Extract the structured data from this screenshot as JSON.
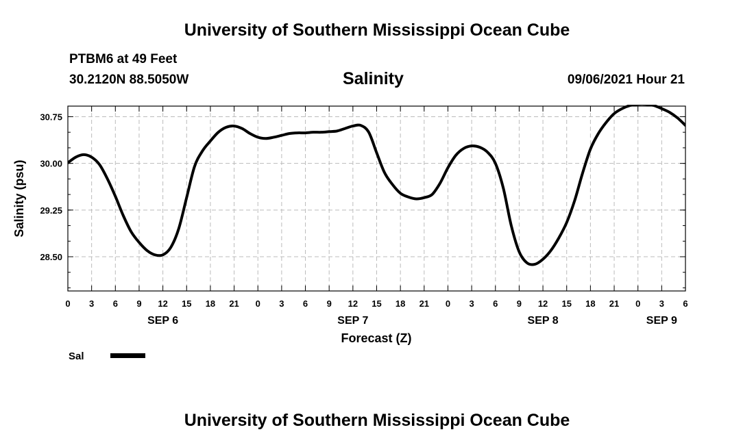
{
  "header": {
    "title": "University of Southern Mississippi Ocean Cube",
    "station": "PTBM6 at 49 Feet",
    "coordinates": "30.2120N  88.5050W",
    "chart_title": "Salinity",
    "datetime": "09/06/2021 Hour 21"
  },
  "footer": {
    "title": "University of Southern Mississippi Ocean Cube"
  },
  "colors": {
    "line": "#000000",
    "grid": "#bbbbbb",
    "axis": "#000000"
  },
  "chart_data": {
    "type": "line",
    "title": "Salinity",
    "xlabel": "Forecast (Z)",
    "ylabel": "Salinity (psu)",
    "x_unit": "hours from SEP 6 00Z",
    "xlim": [
      0,
      78
    ],
    "ylim": [
      27.95,
      30.92
    ],
    "y_ticks": [
      28.5,
      29.25,
      30.0,
      30.75
    ],
    "y_tick_labels": [
      "28.50",
      "29.25",
      "30.00",
      "30.75"
    ],
    "x_ticks": [
      0,
      3,
      6,
      9,
      12,
      15,
      18,
      21,
      24,
      27,
      30,
      33,
      36,
      39,
      42,
      45,
      48,
      51,
      54,
      57,
      60,
      63,
      66,
      69,
      72,
      75,
      78
    ],
    "x_tick_labels": [
      "0",
      "3",
      "6",
      "9",
      "12",
      "15",
      "18",
      "21",
      "0",
      "3",
      "6",
      "9",
      "12",
      "15",
      "18",
      "21",
      "0",
      "3",
      "6",
      "9",
      "12",
      "15",
      "18",
      "21",
      "0",
      "3",
      "6"
    ],
    "day_labels": [
      {
        "hour": 12,
        "label": "SEP 6"
      },
      {
        "hour": 36,
        "label": "SEP 7"
      },
      {
        "hour": 60,
        "label": "SEP 8"
      },
      {
        "hour": 75,
        "label": "SEP 9"
      }
    ],
    "grid": true,
    "legend_position": "bottom-left",
    "series": [
      {
        "name": "Sal",
        "x": [
          0,
          1,
          2,
          3,
          4,
          5,
          6,
          7,
          8,
          9,
          10,
          11,
          12,
          13,
          14,
          15,
          16,
          17,
          18,
          19,
          20,
          21,
          22,
          23,
          24,
          25,
          26,
          27,
          28,
          29,
          30,
          31,
          32,
          33,
          34,
          35,
          36,
          37,
          38,
          39,
          40,
          41,
          42,
          43,
          44,
          45,
          46,
          47,
          48,
          49,
          50,
          51,
          52,
          53,
          54,
          55,
          56,
          57,
          58,
          59,
          60,
          61,
          62,
          63,
          64,
          65,
          66,
          67,
          68,
          69,
          70,
          71,
          72,
          73,
          74,
          75,
          76,
          77,
          78
        ],
        "values": [
          30.01,
          30.1,
          30.14,
          30.1,
          29.98,
          29.75,
          29.47,
          29.16,
          28.9,
          28.73,
          28.6,
          28.53,
          28.53,
          28.65,
          28.95,
          29.45,
          29.95,
          30.2,
          30.36,
          30.5,
          30.58,
          30.6,
          30.56,
          30.48,
          30.42,
          30.4,
          30.42,
          30.45,
          30.48,
          30.49,
          30.49,
          30.5,
          30.5,
          30.51,
          30.52,
          30.56,
          30.6,
          30.61,
          30.5,
          30.17,
          29.85,
          29.66,
          29.52,
          29.46,
          29.43,
          29.45,
          29.5,
          29.68,
          29.93,
          30.13,
          30.24,
          30.28,
          30.26,
          30.18,
          30.0,
          29.6,
          29.0,
          28.58,
          28.4,
          28.38,
          28.46,
          28.6,
          28.8,
          29.05,
          29.4,
          29.84,
          30.23,
          30.48,
          30.66,
          30.8,
          30.88,
          30.93,
          30.95,
          30.95,
          30.93,
          30.88,
          30.82,
          30.73,
          30.61
        ]
      }
    ]
  }
}
